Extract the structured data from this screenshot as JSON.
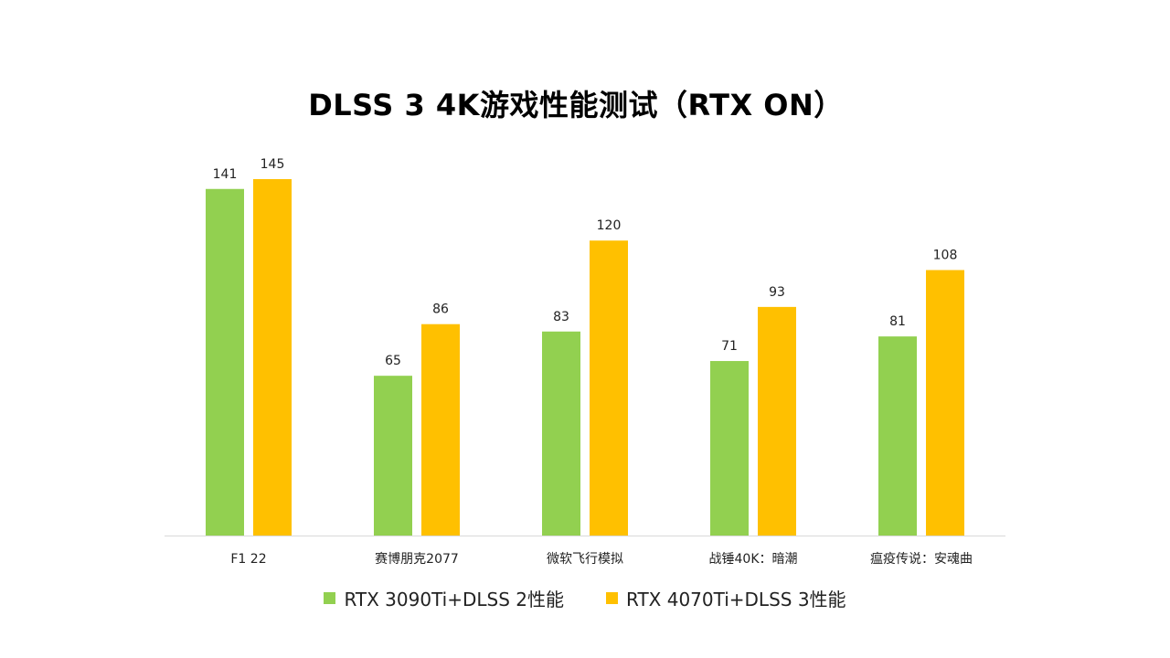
{
  "chart_data": {
    "type": "bar",
    "title": "DLSS 3  4K游戏性能测试（RTX ON）",
    "xlabel": "",
    "ylabel": "",
    "categories": [
      "F1 22",
      "赛博朋克2077",
      "微软飞行模拟",
      "战锤40K：暗潮",
      "瘟疫传说：安魂曲"
    ],
    "series": [
      {
        "name": "RTX 3090Ti+DLSS 2性能",
        "color": "#92d050",
        "values": [
          141,
          65,
          83,
          71,
          81
        ]
      },
      {
        "name": "RTX 4070Ti+DLSS 3性能",
        "color": "#ffc000",
        "values": [
          145,
          86,
          120,
          93,
          108
        ]
      }
    ],
    "ylim": [
      0,
      145
    ],
    "grid": false,
    "legend_position": "bottom",
    "data_labels": true
  }
}
